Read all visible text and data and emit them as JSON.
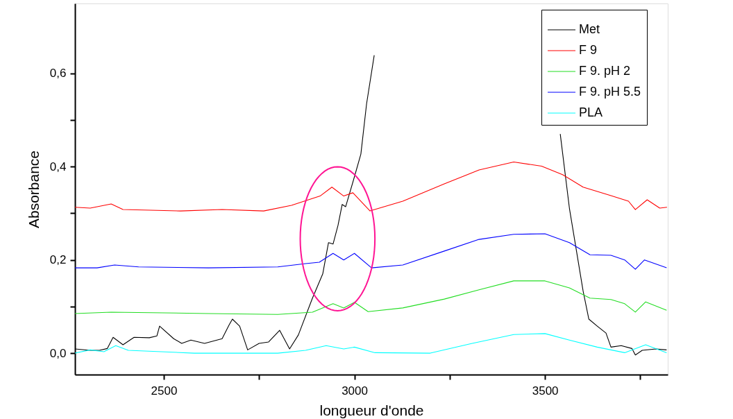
{
  "chart_data": {
    "type": "line",
    "xlabel": "longueur d'onde",
    "ylabel": "Absorbance",
    "xlim": [
      2267,
      3822
    ],
    "ylim": [
      -0.046,
      0.75
    ],
    "xticks": [
      2500,
      {
        "value": 2750,
        "label": null
      },
      3000,
      {
        "value": 3250,
        "label": null
      },
      3500,
      {
        "value": 3750,
        "label": null
      }
    ],
    "yticks": [
      {
        "value": 0.0,
        "label": "0,0"
      },
      {
        "value": 0.1,
        "label": null
      },
      {
        "value": 0.2,
        "label": "0,2"
      },
      {
        "value": 0.3,
        "label": null
      },
      {
        "value": 0.4,
        "label": "0,4"
      },
      {
        "value": 0.5,
        "label": null
      },
      {
        "value": 0.6,
        "label": "0,6"
      }
    ],
    "grid": false,
    "legend": "top right",
    "marker": "none",
    "line_style": "solid",
    "series": [
      {
        "name": "Met",
        "color": "#000000",
        "x": [
          2267,
          2307,
          2331,
          2352,
          2367,
          2393,
          2422,
          2462,
          2482,
          2489,
          2526,
          2547,
          2571,
          2607,
          2653,
          2671,
          2680,
          2699,
          2720,
          2750,
          2775,
          2804,
          2830,
          2853,
          2890,
          2917,
          2932,
          2944,
          2957,
          2968,
          2977,
          3000,
          3017,
          3032,
          3052,
          3300,
          3540,
          3564,
          3600,
          3615,
          3637,
          3660,
          3673,
          3700,
          3728,
          3737,
          3755,
          3791,
          3819
        ],
        "values": [
          0.009,
          0.006,
          0.006,
          0.01,
          0.034,
          0.018,
          0.034,
          0.033,
          0.037,
          0.058,
          0.031,
          0.021,
          0.028,
          0.021,
          0.031,
          0.06,
          0.073,
          0.058,
          0.007,
          0.021,
          0.024,
          0.049,
          0.009,
          0.039,
          0.118,
          0.17,
          0.237,
          0.234,
          0.274,
          0.319,
          0.314,
          0.378,
          0.427,
          0.535,
          0.639,
          null,
          0.47,
          0.311,
          0.133,
          0.073,
          0.058,
          0.043,
          0.013,
          0.016,
          0.01,
          -0.004,
          0.006,
          0.009,
          0.007
        ]
      },
      {
        "name": "F 9",
        "color": "#ff0000",
        "x": [
          2267,
          2307,
          2362,
          2393,
          2544,
          2653,
          2762,
          2835,
          2910,
          2941,
          2972,
          2996,
          3041,
          3127,
          3236,
          3327,
          3418,
          3491,
          3546,
          3600,
          3673,
          3719,
          3737,
          3768,
          3801,
          3820
        ],
        "values": [
          0.313,
          0.311,
          0.32,
          0.308,
          0.305,
          0.308,
          0.305,
          0.317,
          0.337,
          0.356,
          0.337,
          0.344,
          0.305,
          0.326,
          0.363,
          0.393,
          0.41,
          0.401,
          0.383,
          0.356,
          0.338,
          0.326,
          0.308,
          0.329,
          0.311,
          0.313
        ]
      },
      {
        "name": "F 9. pH 2",
        "color": "#22dd22",
        "x": [
          2267,
          2362,
          2617,
          2799,
          2890,
          2944,
          2972,
          3000,
          3036,
          3127,
          3236,
          3327,
          3418,
          3500,
          3564,
          3618,
          3673,
          3709,
          3737,
          3764,
          3819
        ],
        "values": [
          0.085,
          0.088,
          0.085,
          0.083,
          0.088,
          0.106,
          0.097,
          0.109,
          0.089,
          0.097,
          0.116,
          0.136,
          0.155,
          0.155,
          0.14,
          0.118,
          0.115,
          0.106,
          0.088,
          0.11,
          0.092
        ]
      },
      {
        "name": "F 9. pH 5.5",
        "color": "#0000ff",
        "x": [
          2267,
          2325,
          2371,
          2434,
          2617,
          2799,
          2872,
          2908,
          2944,
          2972,
          3000,
          3045,
          3127,
          3236,
          3327,
          3418,
          3500,
          3564,
          3618,
          3673,
          3709,
          3737,
          3761,
          3819
        ],
        "values": [
          0.183,
          0.183,
          0.189,
          0.185,
          0.183,
          0.185,
          0.192,
          0.195,
          0.214,
          0.2,
          0.214,
          0.183,
          0.189,
          0.219,
          0.244,
          0.255,
          0.256,
          0.237,
          0.211,
          0.21,
          0.2,
          0.18,
          0.2,
          0.183
        ]
      },
      {
        "name": "PLA",
        "color": "#00ffff",
        "x": [
          2267,
          2307,
          2343,
          2374,
          2407,
          2580,
          2799,
          2872,
          2926,
          2972,
          3000,
          3054,
          3199,
          3309,
          3418,
          3500,
          3564,
          3637,
          3709,
          3764,
          3819
        ],
        "values": [
          0.0,
          0.007,
          0.003,
          0.016,
          0.006,
          0.0,
          0.0,
          0.006,
          0.016,
          0.009,
          0.013,
          0.001,
          0.0,
          0.021,
          0.04,
          0.042,
          0.028,
          0.013,
          0.001,
          0.018,
          0.001
        ]
      }
    ]
  }
}
